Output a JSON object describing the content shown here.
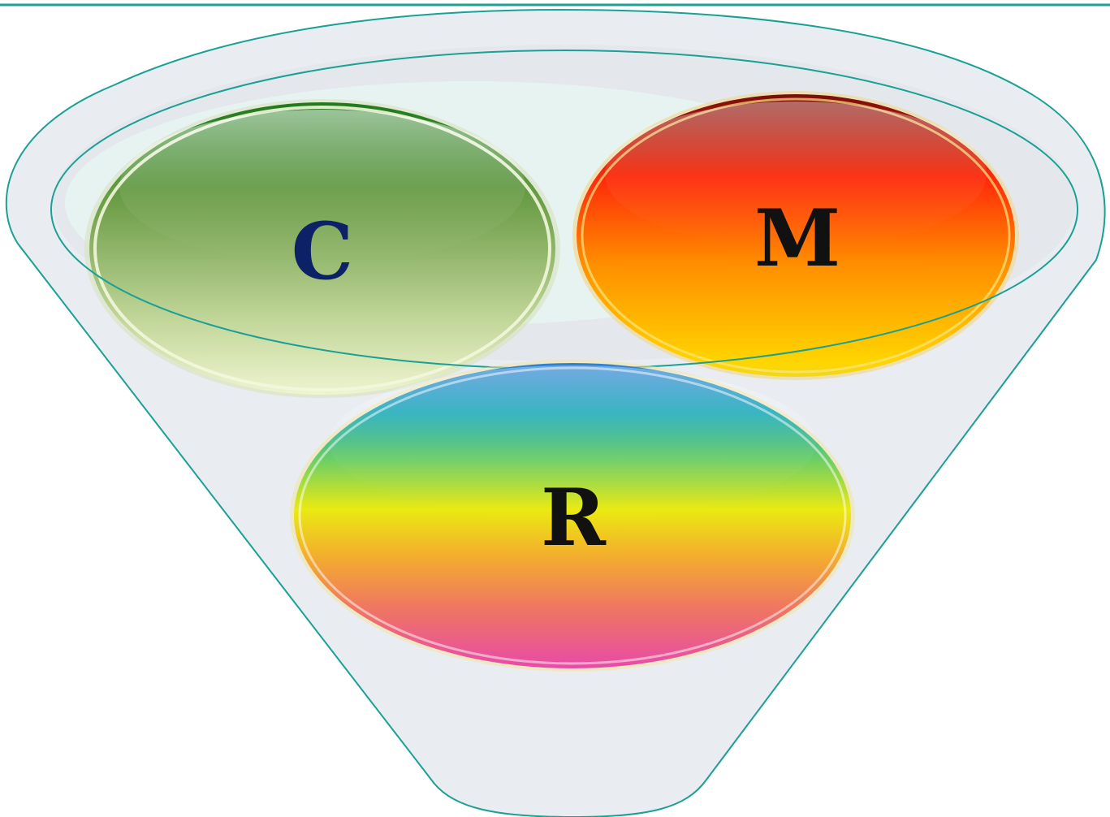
{
  "diagram": {
    "colors": {
      "top_rule": "#1aa095",
      "funnel_outline": "#1aa095",
      "funnel_fill": "#e9edf1",
      "c_text": "#0d2266",
      "m_text": "#111111",
      "r_text": "#111111"
    },
    "ellipses": [
      {
        "id": "c",
        "label": "C"
      },
      {
        "id": "m",
        "label": "M"
      },
      {
        "id": "r",
        "label": "R"
      }
    ]
  }
}
